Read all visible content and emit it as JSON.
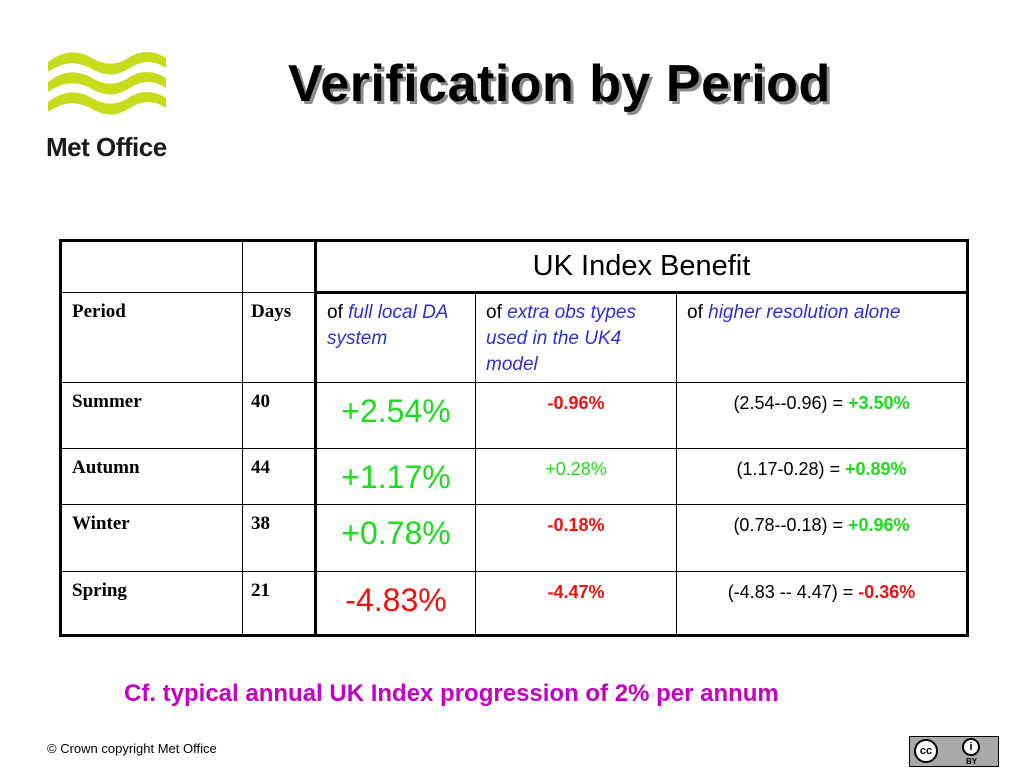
{
  "logo": {
    "name": "Met Office",
    "colors": {
      "waves": "#c8dc1e",
      "text": "#1a1a1a"
    }
  },
  "title": "Verification by Period",
  "table": {
    "header_main": "UK Index Benefit",
    "columns": {
      "period": "Period",
      "days": "Days",
      "full_prefix": "of",
      "full_desc": "full local DA system",
      "extra_prefix": "of",
      "extra_desc": "extra obs types used in the UK4 model",
      "hires_prefix": "of",
      "hires_desc": "higher resolution alone"
    },
    "rows": [
      {
        "period": "Summer",
        "days": "40",
        "full": "+2.54%",
        "extra": "-0.96%",
        "hires_calc": "(2.54--0.96) = ",
        "hires_result": "+3.50%"
      },
      {
        "period": "Autumn",
        "days": "44",
        "full": "+1.17%",
        "extra": "+0.28%",
        "hires_calc": "(1.17-0.28) = ",
        "hires_result": "+0.89%"
      },
      {
        "period": "Winter",
        "days": "38",
        "full": "+0.78%",
        "extra": "-0.18%",
        "hires_calc": "(0.78--0.18) = ",
        "hires_result": "+0.96%"
      },
      {
        "period": "Spring",
        "days": "21",
        "full": "-4.83%",
        "extra": "-4.47%",
        "hires_calc": "(-4.83 -- 4.47) = ",
        "hires_result": "-0.36%"
      }
    ]
  },
  "footnote": "Cf. typical annual UK Index progression of 2% per annum",
  "copyright": "© Crown copyright   Met Office",
  "license_badge": {
    "label": "BY",
    "icon_names": [
      "cc-icon",
      "attribution-icon"
    ]
  },
  "colors": {
    "positive": "#1ddc1d",
    "negative": "#ee1111",
    "emphasis_italic": "#2f2fd0",
    "footnote": "#c400c4"
  }
}
